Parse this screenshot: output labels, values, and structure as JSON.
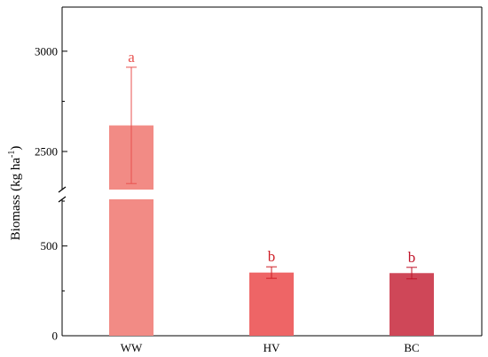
{
  "chart_data": {
    "type": "bar",
    "ylabel": "Biomass (kg ha",
    "ylabel_superscript": "-1",
    "ylabel_suffix": ")",
    "categories": [
      "WW",
      "HV",
      "BC"
    ],
    "values": [
      2630,
      352,
      349
    ],
    "error": [
      290,
      32,
      32
    ],
    "significance_letters": [
      "a",
      "b",
      "b"
    ],
    "bar_colors": [
      "#F28B85",
      "#EE6566",
      "#CF4758"
    ],
    "letter_colors": [
      "#E8524F",
      "#CF1F27",
      "#C0142A"
    ],
    "axis_break": true,
    "lower_segment": {
      "ylim": [
        0,
        760
      ],
      "ticks": [
        0,
        500
      ]
    },
    "upper_segment": {
      "ylim": [
        2310,
        3220
      ],
      "ticks": [
        2500,
        3000
      ]
    },
    "grid": false,
    "legend": "none"
  }
}
